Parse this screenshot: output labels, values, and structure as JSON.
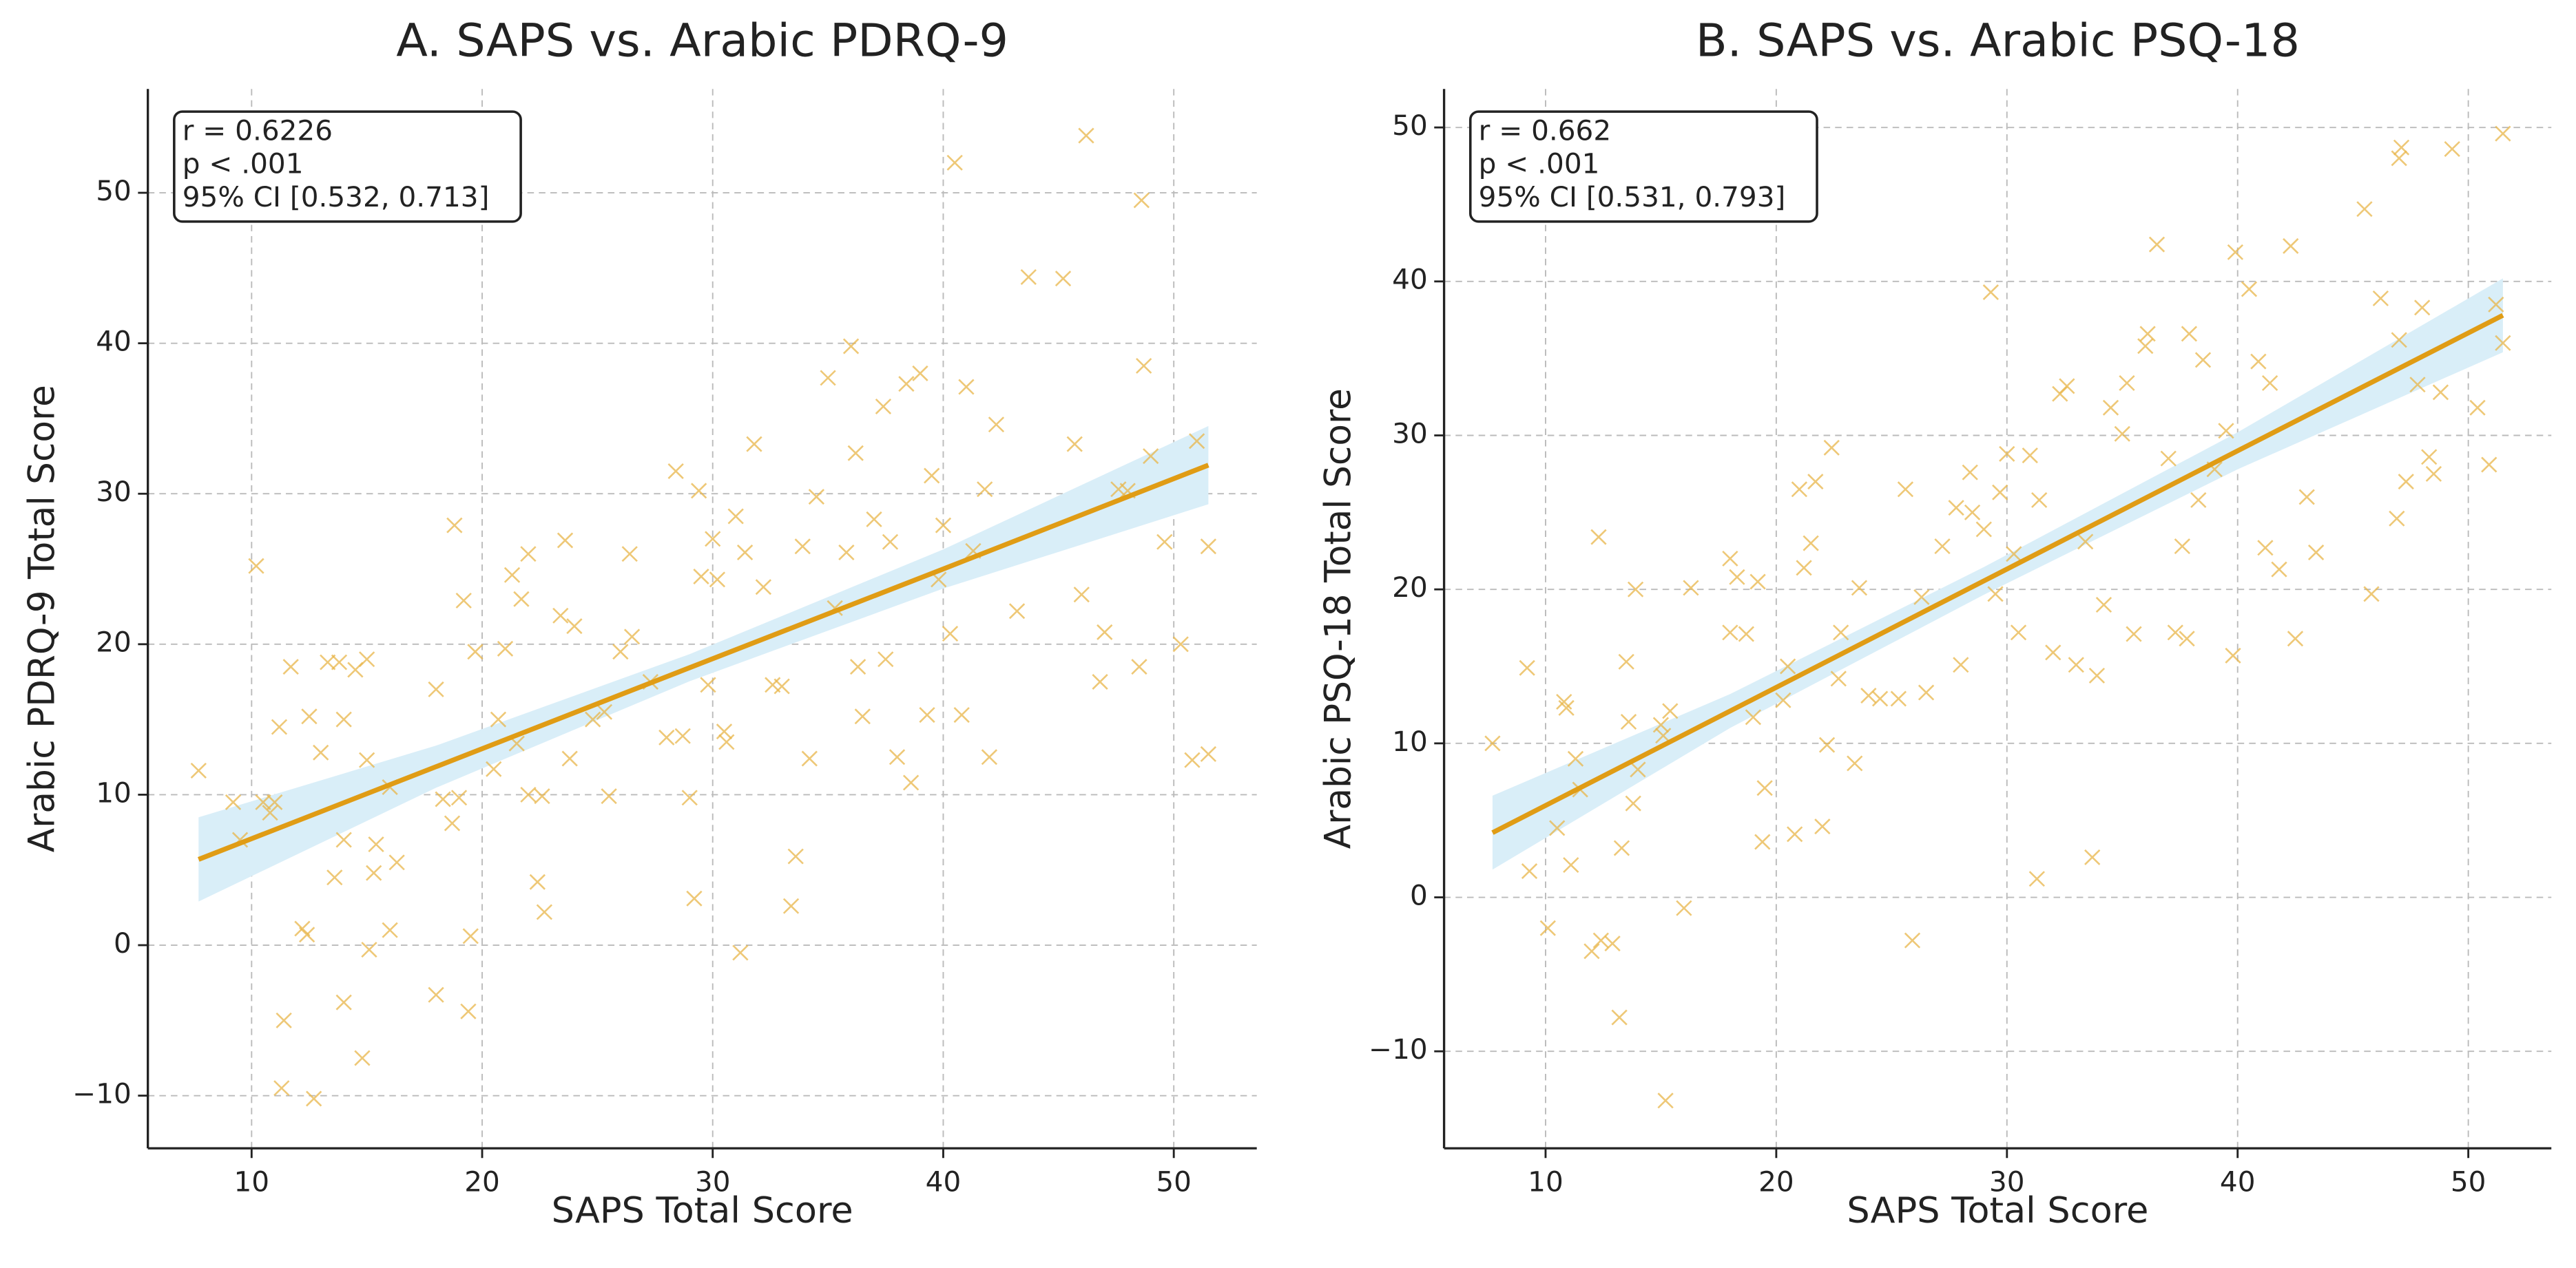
{
  "chart_data": [
    {
      "type": "scatter",
      "title": "A. SAPS vs. Arabic PDRQ-9",
      "xlabel": "SAPS Total Score",
      "ylabel": "Arabic PDRQ-9 Total Score",
      "annotation": [
        "r = 0.6226",
        "p < .001",
        "95% CI [0.532, 0.713]"
      ],
      "xlim": [
        5.5,
        53.6
      ],
      "ylim": [
        -13.5,
        56.9
      ],
      "xticks": [
        10,
        20,
        30,
        40,
        50
      ],
      "yticks": [
        {
          "value": -10,
          "label": "−10"
        },
        0,
        10,
        20,
        30,
        40,
        50
      ],
      "grid": true,
      "color": "#e8b54a",
      "points": {
        "x": [
          7.7,
          9.2,
          9.5,
          10.2,
          10.5,
          10.8,
          11,
          11.2,
          11.3,
          11.4,
          11.7,
          12.2,
          12.5,
          12.7,
          12.4,
          13,
          13.3,
          13.6,
          13.8,
          14,
          14,
          14,
          14.5,
          14.8,
          15,
          15,
          15.1,
          15.3,
          15.4,
          16,
          16.3,
          16,
          18,
          18,
          18.3,
          18.7,
          18.8,
          19.2,
          19.4,
          19.5,
          19.7,
          19,
          20.5,
          20.7,
          21,
          21.3,
          21.5,
          21.7,
          22,
          22,
          22.4,
          22.6,
          22.7,
          23.4,
          23.6,
          23.8,
          24,
          24.8,
          25.3,
          25.5,
          26,
          26.4,
          26.5,
          27.3,
          28,
          28.4,
          28.7,
          29,
          29.2,
          29.4,
          29.5,
          29.8,
          30,
          30.2,
          30.5,
          30.6,
          31,
          31.2,
          31.4,
          31.8,
          32.2,
          32.6,
          33,
          33.4,
          33.6,
          33.9,
          34.2,
          34.5,
          35,
          35.3,
          35.8,
          36,
          36.2,
          36.3,
          36.5,
          37,
          37.4,
          37.5,
          37.7,
          38,
          38.4,
          38.6,
          39,
          39.3,
          39.5,
          39.8,
          40,
          40.3,
          40.5,
          40.8,
          41,
          41.3,
          41.8,
          42.3,
          42,
          43.2,
          43.7,
          45.2,
          45.7,
          46,
          46.2,
          46.8,
          47,
          47.6,
          48,
          48.5,
          48.6,
          48.7,
          49,
          49.6,
          50.3,
          50.8,
          51,
          51.5,
          51.5
        ],
        "y": [
          11.6,
          9.5,
          7,
          25.2,
          9.5,
          8.8,
          9.5,
          14.5,
          -9.5,
          -5,
          18.5,
          1.1,
          15.2,
          -10.2,
          0.7,
          12.8,
          18.8,
          4.5,
          18.8,
          15,
          7,
          -3.8,
          18.3,
          -7.5,
          12.3,
          19,
          -0.3,
          4.8,
          6.7,
          1,
          5.5,
          10.5,
          -3.3,
          17,
          9.7,
          8.1,
          27.9,
          22.9,
          -4.4,
          0.6,
          19.5,
          9.8,
          11.7,
          15,
          19.7,
          24.6,
          13.4,
          23,
          10,
          26,
          4.2,
          9.9,
          2.2,
          21.9,
          26.9,
          12.4,
          21.2,
          15,
          15.5,
          9.9,
          19.5,
          26,
          20.5,
          17.5,
          13.8,
          31.5,
          13.9,
          9.8,
          3.1,
          30.2,
          24.5,
          17.3,
          27,
          24.3,
          14.2,
          13.5,
          28.5,
          -0.5,
          26.1,
          33.3,
          23.8,
          17.3,
          17.2,
          2.6,
          5.9,
          26.5,
          12.4,
          29.8,
          37.7,
          22.4,
          26.1,
          39.8,
          32.7,
          18.5,
          15.2,
          28.3,
          35.8,
          19,
          26.8,
          12.5,
          37.3,
          10.8,
          38,
          15.3,
          31.2,
          24.3,
          27.9,
          20.7,
          52,
          15.3,
          37.1,
          26.2,
          30.3,
          34.6,
          12.5,
          22.2,
          44.4,
          44.3,
          33.3,
          23.3,
          53.8,
          17.5,
          20.8,
          30.3,
          30.2,
          18.5,
          49.5,
          38.5,
          32.5,
          26.8,
          20,
          12.3,
          33.5,
          26.5,
          12.7
        ]
      },
      "fit": {
        "x": [
          7.7,
          18,
          29,
          40,
          51.5
        ],
        "y": [
          5.7,
          11.86,
          18.44,
          25,
          31.9
        ],
        "lower": [
          2.9,
          10.46,
          17.54,
          23.7,
          29.3
        ],
        "upper": [
          8.5,
          13.26,
          19.34,
          26.3,
          34.5
        ],
        "color": "#e09c15",
        "band_color": "#d9eef8"
      }
    },
    {
      "type": "scatter",
      "title": "B. SAPS vs. Arabic PSQ-18",
      "xlabel": "SAPS Total Score",
      "ylabel": "Arabic PSQ-18 Total Score",
      "annotation": [
        "r = 0.662",
        "p < .001",
        "95% CI [0.531, 0.793]"
      ],
      "xlim": [
        5.6,
        53.6
      ],
      "ylim": [
        -16.3,
        52.5
      ],
      "xticks": [
        10,
        20,
        30,
        40,
        50
      ],
      "yticks": [
        {
          "value": -10,
          "label": "−10"
        },
        0,
        10,
        20,
        30,
        40,
        50
      ],
      "grid": true,
      "color": "#e8b54a",
      "points": {
        "x": [
          7.7,
          9.2,
          9.3,
          10.1,
          10.5,
          10.8,
          10.9,
          11.1,
          11.3,
          11.5,
          12,
          12.3,
          12.4,
          12.9,
          13.2,
          13.3,
          13.5,
          13.6,
          13.8,
          13.9,
          14,
          15,
          15.1,
          15.2,
          15.4,
          16,
          16.3,
          18,
          18,
          18.3,
          18.7,
          19,
          19.2,
          19.4,
          19.5,
          20.3,
          20.5,
          20.8,
          21,
          21.2,
          21.5,
          21.7,
          22,
          22.2,
          22.4,
          22.7,
          22.8,
          23.4,
          23.6,
          24,
          24.5,
          25.3,
          25.6,
          25.9,
          26.3,
          26.5,
          27.2,
          27.8,
          28,
          28.4,
          28.5,
          29,
          29.3,
          29.5,
          29.7,
          30,
          30.3,
          30.5,
          31,
          31.3,
          31.4,
          32,
          32.3,
          32.6,
          33,
          33.4,
          33.7,
          33.9,
          34.2,
          34.5,
          35,
          35.2,
          35.5,
          36,
          36.1,
          36.5,
          37,
          37.3,
          37.6,
          37.8,
          37.9,
          38.3,
          38.5,
          39,
          39.5,
          39.8,
          39.9,
          40.5,
          40.9,
          41.2,
          41.4,
          41.8,
          42.3,
          42.5,
          43,
          43.4,
          45.5,
          45.8,
          46.2,
          46.9,
          47,
          47,
          47.1,
          47.3,
          47.8,
          48,
          48.3,
          48.5,
          48.8,
          49.3,
          50.4,
          50.9,
          51.2,
          51.5,
          51.5
        ],
        "y": [
          10,
          14.9,
          1.7,
          -2,
          4.5,
          12.7,
          12.3,
          2.1,
          9,
          7,
          -3.5,
          23.4,
          -2.8,
          -3,
          -7.8,
          3.2,
          15.3,
          11.4,
          6.1,
          20,
          8.3,
          11.2,
          10.5,
          -13.2,
          12.1,
          -0.7,
          20.1,
          22,
          17.2,
          20.8,
          17.1,
          11.7,
          20.5,
          3.6,
          7.1,
          12.8,
          15,
          4.1,
          26.5,
          21.4,
          23,
          27,
          4.6,
          9.9,
          29.2,
          14.2,
          17.2,
          8.7,
          20.1,
          13.1,
          12.9,
          12.9,
          26.5,
          -2.8,
          19.5,
          13.3,
          22.8,
          25.3,
          15.1,
          27.6,
          25,
          23.9,
          39.3,
          19.7,
          26.3,
          28.8,
          22.3,
          17.2,
          28.7,
          1.2,
          25.8,
          15.9,
          32.7,
          33.2,
          15.1,
          23.1,
          2.6,
          14.4,
          19,
          31.8,
          30.1,
          33.4,
          17.1,
          35.8,
          36.6,
          42.4,
          28.5,
          17.2,
          22.8,
          16.8,
          36.6,
          25.8,
          34.9,
          27.8,
          30.3,
          15.7,
          41.9,
          39.5,
          34.8,
          22.7,
          33.4,
          21.3,
          42.3,
          16.8,
          26,
          22.4,
          44.7,
          19.7,
          38.9,
          24.6,
          36.2,
          48,
          48.7,
          27,
          33.3,
          38.3,
          28.6,
          27.5,
          32.8,
          48.6,
          31.8,
          28.1,
          38.5,
          49.6,
          36
        ]
      },
      "fit": {
        "x": [
          7.7,
          18,
          29,
          40,
          51.5
        ],
        "y": [
          4.2,
          12.1,
          20.55,
          29,
          37.8
        ],
        "lower": [
          1.8,
          11,
          19.65,
          27.8,
          35.4
        ],
        "upper": [
          6.6,
          13.2,
          21.45,
          30.2,
          40.2
        ],
        "color": "#e09c15",
        "band_color": "#d9eef8"
      }
    }
  ]
}
